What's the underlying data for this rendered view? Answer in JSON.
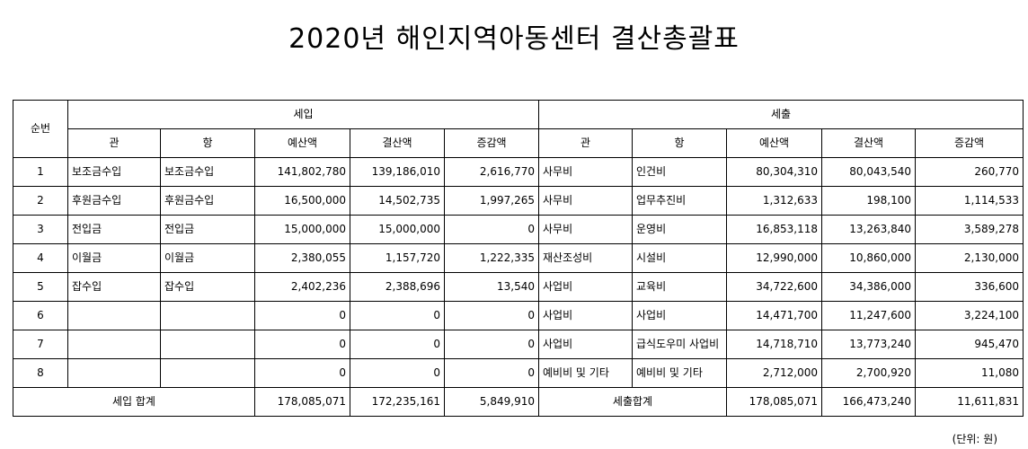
{
  "header": {
    "title": "2020년 해인지역아동센터 결산총괄표"
  },
  "table": {
    "no_header": "순번",
    "income_header": "세입",
    "expense_header": "세출",
    "sub_headers": [
      "관",
      "항",
      "예산액",
      "결산액",
      "증감액",
      "관",
      "항",
      "예산액",
      "결산액",
      "증감액"
    ],
    "rows": [
      [
        "1",
        "보조금수입",
        "보조금수입",
        "141,802,780",
        "139,186,010",
        "2,616,770",
        "사무비",
        "인건비",
        "80,304,310",
        "80,043,540",
        "260,770"
      ],
      [
        "2",
        "후원금수입",
        "후원금수입",
        "16,500,000",
        "14,502,735",
        "1,997,265",
        "사무비",
        "업무추진비",
        "1,312,633",
        "198,100",
        "1,114,533"
      ],
      [
        "3",
        "전입금",
        "전입금",
        "15,000,000",
        "15,000,000",
        "0",
        "사무비",
        "운영비",
        "16,853,118",
        "13,263,840",
        "3,589,278"
      ],
      [
        "4",
        "이월금",
        "이월금",
        "2,380,055",
        "1,157,720",
        "1,222,335",
        "재산조성비",
        "시설비",
        "12,990,000",
        "10,860,000",
        "2,130,000"
      ],
      [
        "5",
        "잡수입",
        "잡수입",
        "2,402,236",
        "2,388,696",
        "13,540",
        "사업비",
        "교육비",
        "34,722,600",
        "34,386,000",
        "336,600"
      ],
      [
        "6",
        null,
        null,
        "0",
        "0",
        "0",
        "사업비",
        "사업비",
        "14,471,700",
        "11,247,600",
        "3,224,100"
      ],
      [
        "7",
        null,
        null,
        "0",
        "0",
        "0",
        "사업비",
        "급식도우미 사업비",
        "14,718,710",
        "13,773,240",
        "945,470"
      ],
      [
        "8",
        null,
        null,
        "0",
        "0",
        "0",
        "예비비 및 기타",
        "예비비 및 기타",
        "2,712,000",
        "2,700,920",
        "11,080"
      ]
    ],
    "total": {
      "income_label": "세입 합계",
      "income_values": [
        "178,085,071",
        "172,235,161",
        "5,849,910"
      ],
      "expense_label": "세출합계",
      "expense_values": [
        "178,085,071",
        "166,473,240",
        "11,611,831"
      ]
    }
  },
  "footer": {
    "unit": "(단위: 원)"
  }
}
